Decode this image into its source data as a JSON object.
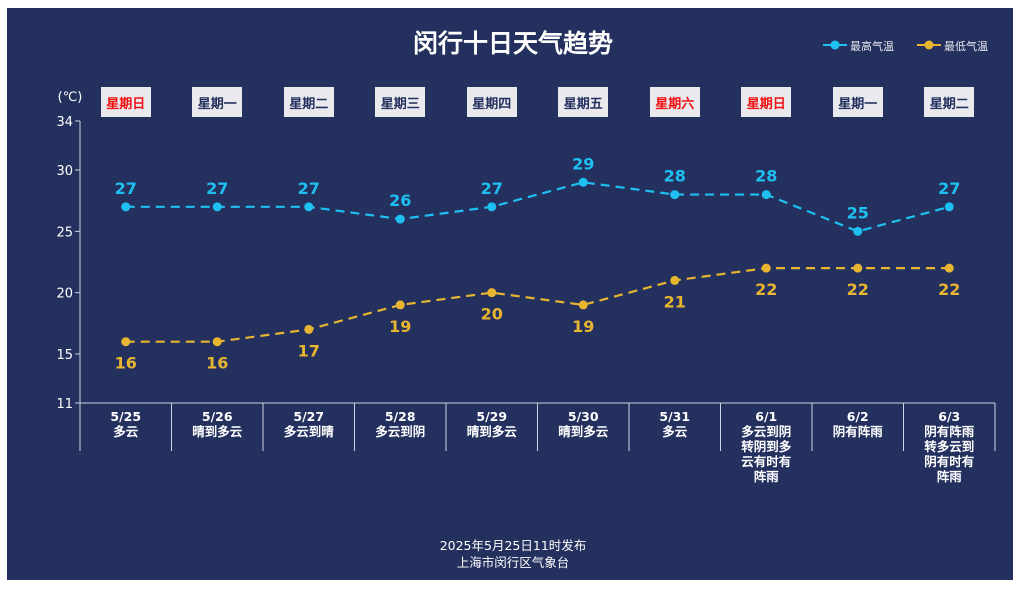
{
  "title": "闵行十日天气趋势",
  "legend": [
    "最高气温",
    "最低气温"
  ],
  "footer": {
    "line1": "2025年5月25日11时发布",
    "line2": "上海市闵行区气象台"
  },
  "colors": {
    "background": "#24305e",
    "high": "#1ec0f2",
    "low": "#e8b531",
    "weekend": "#f01010"
  },
  "chart_data": {
    "type": "line",
    "title": "闵行十日天气趋势",
    "ylabel": "(℃)",
    "ylim": [
      11,
      34
    ],
    "yticks": [
      11,
      15,
      20,
      25,
      30,
      34
    ],
    "weekdays": [
      "星期日",
      "星期一",
      "星期二",
      "星期三",
      "星期四",
      "星期五",
      "星期六",
      "星期日",
      "星期一",
      "星期二"
    ],
    "weekend": [
      true,
      false,
      false,
      false,
      false,
      false,
      true,
      true,
      false,
      false
    ],
    "categories": [
      "5/25",
      "5/26",
      "5/27",
      "5/28",
      "5/29",
      "5/30",
      "5/31",
      "6/1",
      "6/2",
      "6/3"
    ],
    "weather": [
      "多云",
      "晴到多云",
      "多云到晴",
      "多云到阴",
      "晴到多云",
      "晴到多云",
      "多云",
      "多云到阴转阴到多云有时有阵雨",
      "阴有阵雨",
      "阴有阵雨转多云到阴有时有阵雨"
    ],
    "series": [
      {
        "name": "最高气温",
        "values": [
          27,
          27,
          27,
          26,
          27,
          29,
          28,
          28,
          25,
          27
        ]
      },
      {
        "name": "最低气温",
        "values": [
          16,
          16,
          17,
          19,
          20,
          19,
          21,
          22,
          22,
          22
        ]
      }
    ],
    "legend_position": "top-right",
    "grid": false
  }
}
